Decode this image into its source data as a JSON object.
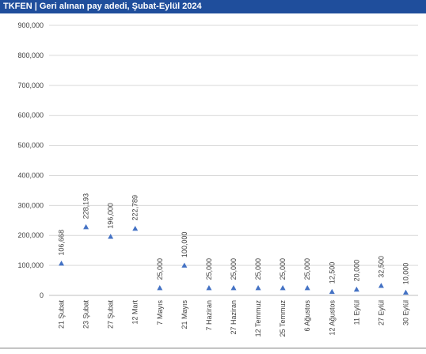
{
  "header": {
    "title": "TKFEN | Geri alınan pay adedi, Şubat-Eylül 2024"
  },
  "chart_data": {
    "type": "scatter",
    "title": "TKFEN | Geri alınan pay adedi, Şubat-Eylül 2024",
    "xlabel": "",
    "ylabel": "",
    "ylim": [
      0,
      900000
    ],
    "yticks": [
      "0",
      "100,000",
      "200,000",
      "300,000",
      "400,000",
      "500,000",
      "600,000",
      "700,000",
      "800,000",
      "900,000"
    ],
    "grid": true,
    "marker": "triangle",
    "marker_color": "#4472c4",
    "categories": [
      "21 Şubat",
      "23 Şubat",
      "27 Şubat",
      "12 Mart",
      "7 Mayıs",
      "21 Mayıs",
      "7 Haziran",
      "27 Haziran",
      "12 Temmuz",
      "25 Temmuz",
      "6 Ağustos",
      "12 Ağustos",
      "11 Eylül",
      "27 Eylül",
      "30 Eylül"
    ],
    "values": [
      106668,
      228193,
      196000,
      222789,
      25000,
      100000,
      25000,
      25000,
      25000,
      25000,
      25000,
      12500,
      20000,
      32500,
      10000
    ],
    "labels": [
      "106,668",
      "228,193",
      "196,000",
      "222,789",
      "25,000",
      "100,000",
      "25,000",
      "25,000",
      "25,000",
      "25,000",
      "25,000",
      "12,500",
      "20,000",
      "32,500",
      "10,000"
    ]
  }
}
